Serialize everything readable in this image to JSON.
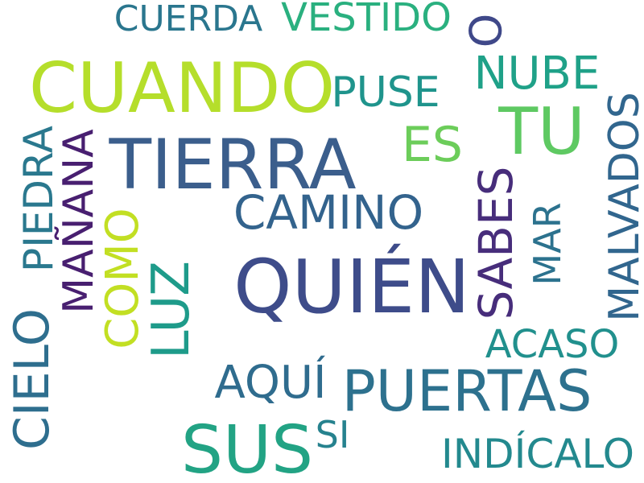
{
  "words": [
    {
      "id": "cuando",
      "text": "CUANDO",
      "color": "#b5de2b"
    },
    {
      "id": "tierra",
      "text": "TIERRA",
      "color": "#3b5e8c"
    },
    {
      "id": "quien",
      "text": "QUIÉN",
      "color": "#3e4c8a"
    },
    {
      "id": "sus",
      "text": "SUS",
      "color": "#22a384"
    },
    {
      "id": "puertas",
      "text": "PUERTAS",
      "color": "#2d718e"
    },
    {
      "id": "camino",
      "text": "CAMINO",
      "color": "#33638d"
    },
    {
      "id": "tu",
      "text": "TU",
      "color": "#5ec962"
    },
    {
      "id": "nube",
      "text": "NUBE",
      "color": "#1fa188"
    },
    {
      "id": "vestido",
      "text": "VESTIDO",
      "color": "#2ab07f"
    },
    {
      "id": "cuerda",
      "text": "CUERDA",
      "color": "#2a768e"
    },
    {
      "id": "o",
      "text": "O",
      "color": "#3f4889"
    },
    {
      "id": "puse",
      "text": "PUSE",
      "color": "#1f948c"
    },
    {
      "id": "es",
      "text": "ES",
      "color": "#6ccd5a"
    },
    {
      "id": "sabes",
      "text": "SABES",
      "color": "#472d7b"
    },
    {
      "id": "mar",
      "text": "MAR",
      "color": "#2c728e"
    },
    {
      "id": "malvados",
      "text": "MALVADOS",
      "color": "#31668e"
    },
    {
      "id": "acaso",
      "text": "ACASO",
      "color": "#21908d"
    },
    {
      "id": "luz",
      "text": "LUZ",
      "color": "#1e9b8a"
    },
    {
      "id": "como",
      "text": "COMO",
      "color": "#c2df23"
    },
    {
      "id": "manana",
      "text": "MAÑANA",
      "color": "#481f70"
    },
    {
      "id": "piedra",
      "text": "PIEDRA",
      "color": "#2a788e"
    },
    {
      "id": "cielo",
      "text": "CIELO",
      "color": "#2e6e8e"
    },
    {
      "id": "aqui",
      "text": "AQUÍ",
      "color": "#2f6c8e"
    },
    {
      "id": "si",
      "text": "SI",
      "color": "#26828e"
    },
    {
      "id": "indicalo",
      "text": "INDÍCALO",
      "color": "#23898e"
    }
  ]
}
